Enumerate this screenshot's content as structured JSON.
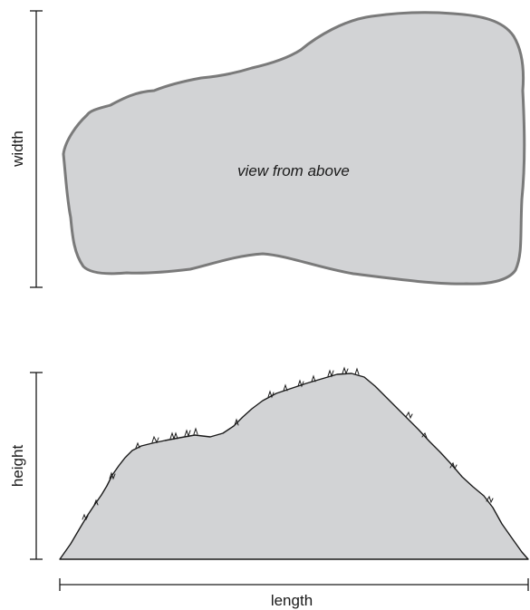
{
  "labels": {
    "width": "width",
    "height": "height",
    "length": "length",
    "top_view": "view from above"
  },
  "colors": {
    "fill": "#d2d3d5",
    "top_outline": "#7a7a7a",
    "side_outline": "#1a1a1a",
    "dimension_line": "#1a1a1a"
  }
}
